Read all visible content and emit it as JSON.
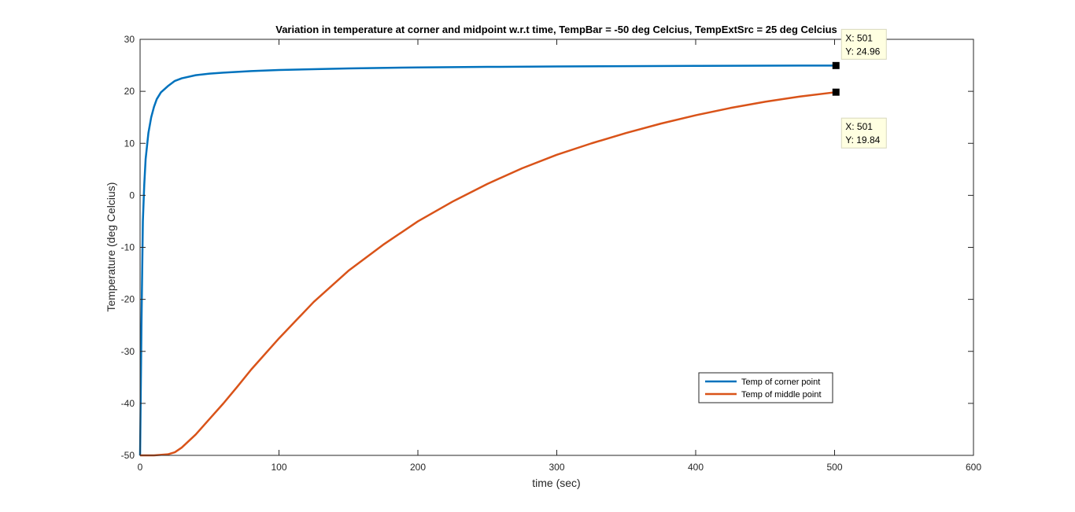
{
  "figure": {
    "background": "#ffffff",
    "axes_color": "#262626"
  },
  "chart_data": {
    "type": "line",
    "title": "Variation in temperature at corner and midpoint w.r.t time,  TempBar = -50 deg Celcius, TempExtSrc = 25 deg Celcius",
    "xlabel": "time (sec)",
    "ylabel": "Temperature (deg Celcius)",
    "xlim": [
      0,
      600
    ],
    "ylim": [
      -50,
      30
    ],
    "xticks": [
      0,
      100,
      200,
      300,
      400,
      500,
      600
    ],
    "yticks": [
      -50,
      -40,
      -30,
      -20,
      -10,
      0,
      10,
      20,
      30
    ],
    "grid": false,
    "legend_position": "bottom-right",
    "series": [
      {
        "name": "Temp of corner point",
        "color": "#0072bd",
        "x": [
          0,
          1,
          2,
          3,
          4,
          5,
          6,
          8,
          10,
          12,
          15,
          20,
          25,
          30,
          40,
          50,
          60,
          80,
          100,
          150,
          200,
          250,
          300,
          350,
          400,
          450,
          501
        ],
        "y": [
          -50,
          -25,
          -5,
          2,
          7,
          9.5,
          12,
          15,
          17,
          18.5,
          19.8,
          21,
          22,
          22.5,
          23.1,
          23.4,
          23.6,
          23.9,
          24.1,
          24.4,
          24.6,
          24.7,
          24.78,
          24.84,
          24.9,
          24.93,
          24.96
        ]
      },
      {
        "name": "Temp of middle point",
        "color": "#d95319",
        "x": [
          0,
          10,
          20,
          25,
          30,
          40,
          50,
          60,
          70,
          80,
          100,
          125,
          150,
          175,
          200,
          225,
          250,
          275,
          300,
          325,
          350,
          375,
          400,
          425,
          450,
          475,
          501
        ],
        "y": [
          -50,
          -50,
          -49.8,
          -49.4,
          -48.5,
          -46,
          -43,
          -40,
          -36.8,
          -33.5,
          -27.5,
          -20.5,
          -14.5,
          -9.5,
          -5,
          -1.2,
          2.2,
          5.2,
          7.8,
          10,
          12,
          13.8,
          15.4,
          16.8,
          18,
          19,
          19.84
        ]
      }
    ],
    "datatips": [
      {
        "series": "Temp of corner point",
        "x": 501,
        "y": 24.96,
        "x_label": "X: 501",
        "y_label": "Y: 24.96"
      },
      {
        "series": "Temp of middle point",
        "x": 501,
        "y": 19.84,
        "x_label": "X: 501",
        "y_label": "Y: 19.84"
      }
    ]
  }
}
